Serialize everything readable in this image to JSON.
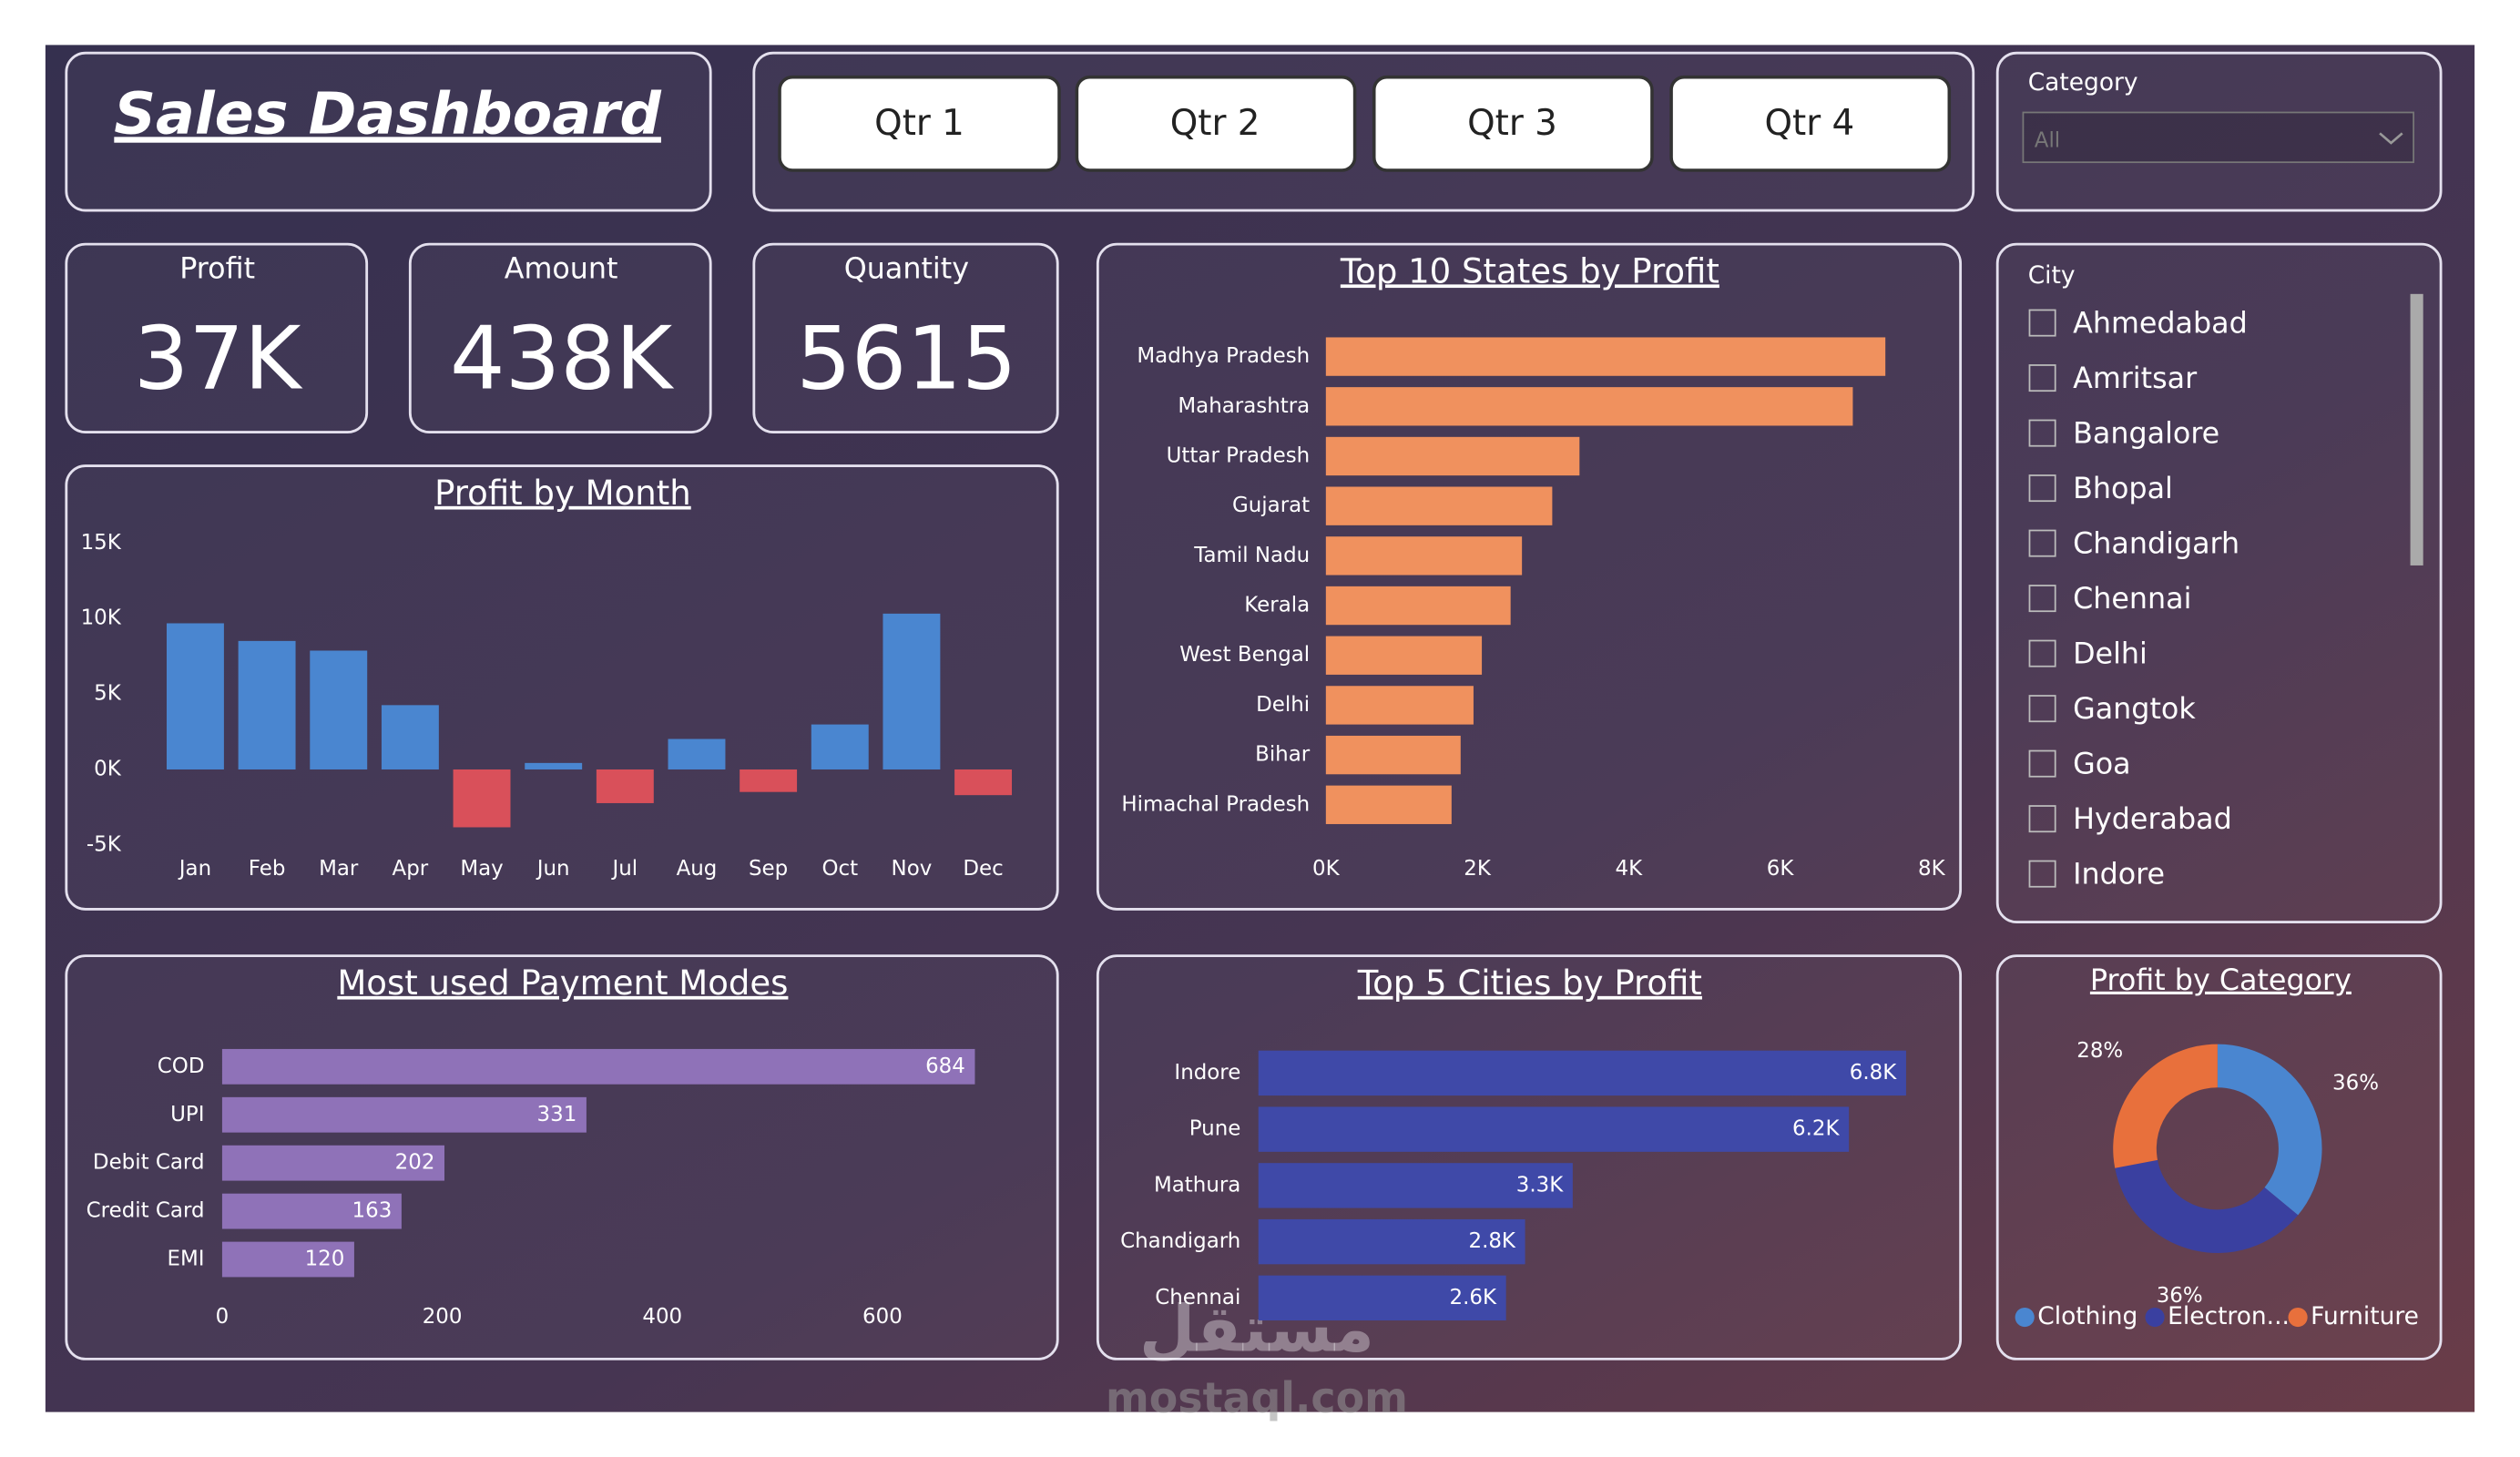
{
  "header": {
    "title": "Sales Dashboard"
  },
  "buttons": [
    "Qtr 1",
    "Qtr 2",
    "Qtr 3",
    "Qtr 4"
  ],
  "kpis": [
    {
      "label": "Profit",
      "value": "37K"
    },
    {
      "label": "Amount",
      "value": "438K"
    },
    {
      "label": "Quantity",
      "value": "5615"
    }
  ],
  "category_slicer": {
    "title": "Category",
    "selected": "All"
  },
  "city_slicer": {
    "title": "City",
    "items": [
      "Ahmedabad",
      "Amritsar",
      "Bangalore",
      "Bhopal",
      "Chandigarh",
      "Chennai",
      "Delhi",
      "Gangtok",
      "Goa",
      "Hyderabad",
      "Indore"
    ]
  },
  "watermark": [
    "مستقل",
    "mostaql.com"
  ],
  "chart_data": [
    {
      "type": "bar",
      "title": "Profit by Month",
      "categories": [
        "Jan",
        "Feb",
        "Mar",
        "Apr",
        "May",
        "Jun",
        "Jul",
        "Aug",
        "Sep",
        "Oct",
        "Nov",
        "Dec"
      ],
      "values": [
        9680,
        8510,
        7870,
        4260,
        -3830,
        430,
        -2230,
        2020,
        -1490,
        2980,
        10320,
        -1700
      ],
      "positive_color": "#4a86d0",
      "negative_color": "#d9505a",
      "ylim": [
        -5000,
        15000
      ],
      "yticks": [
        {
          "value": -5000,
          "label": "-5K"
        },
        {
          "value": 0,
          "label": "0K"
        },
        {
          "value": 5000,
          "label": "5K"
        },
        {
          "value": 10000,
          "label": "10K"
        },
        {
          "value": 15000,
          "label": "15K"
        }
      ]
    },
    {
      "type": "hbar",
      "title": "Top 10 States by Profit",
      "categories": [
        "Madhya Pradesh",
        "Maharashtra",
        "Uttar Pradesh",
        "Gujarat",
        "Tamil Nadu",
        "Kerala",
        "West Bengal",
        "Delhi",
        "Bihar",
        "Himachal Pradesh"
      ],
      "values": [
        7390,
        6960,
        3350,
        2990,
        2590,
        2440,
        2060,
        1950,
        1780,
        1660
      ],
      "color": "#f0915e",
      "xlim": [
        0,
        8000
      ],
      "xticks": [
        {
          "value": 0,
          "label": "0K"
        },
        {
          "value": 2000,
          "label": "2K"
        },
        {
          "value": 4000,
          "label": "4K"
        },
        {
          "value": 6000,
          "label": "6K"
        },
        {
          "value": 8000,
          "label": "8K"
        }
      ]
    },
    {
      "type": "hbar",
      "title": "Most used Payment Modes",
      "categories": [
        "COD",
        "UPI",
        "Debit Card",
        "Credit Card",
        "EMI"
      ],
      "values": [
        684,
        331,
        202,
        163,
        120
      ],
      "color": "#8f72b8",
      "xlim": [
        0,
        700
      ],
      "xticks": [
        0,
        200,
        400,
        600
      ]
    },
    {
      "type": "hbar",
      "title": "Top 5 Cities by Profit",
      "categories": [
        "Indore",
        "Pune",
        "Mathura",
        "Chandigarh",
        "Chennai"
      ],
      "values": [
        6800,
        6200,
        3300,
        2800,
        2600
      ],
      "value_labels": [
        "6.8K",
        "6.2K",
        "3.3K",
        "2.8K",
        "2.6K"
      ],
      "color": "#3f49a8",
      "xlim": [
        0,
        7000
      ]
    },
    {
      "type": "pie",
      "title": "Profit by Category",
      "categories": [
        "Clothing",
        "Electron...",
        "Furniture"
      ],
      "values": [
        36,
        36,
        28
      ],
      "value_labels": [
        "36%",
        "36%",
        "28%"
      ],
      "colors": [
        "#4a86d0",
        "#3a40a0",
        "#e8703c"
      ]
    }
  ]
}
